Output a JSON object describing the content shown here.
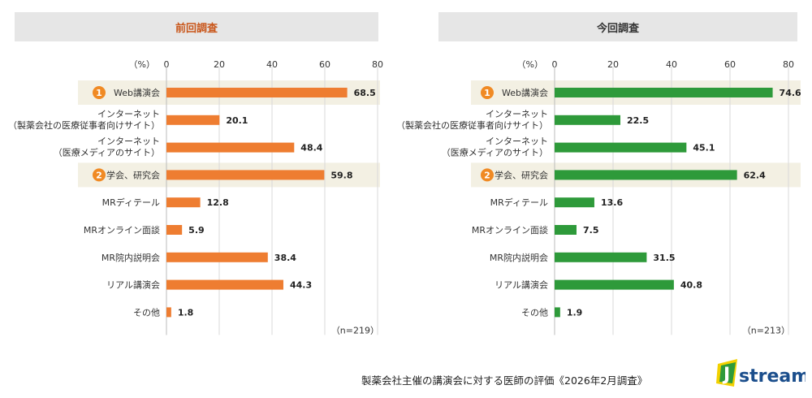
{
  "chart_data": [
    {
      "type": "bar",
      "orientation": "horizontal",
      "title": "前回調査",
      "unit_label": "（%）",
      "xlim": [
        0,
        80
      ],
      "xticks": [
        "0",
        "20",
        "40",
        "60",
        "80"
      ],
      "categories": [
        {
          "rank": "1",
          "lines": [
            "Web講演会"
          ]
        },
        {
          "rank": "",
          "lines": [
            "インターネット",
            "（製薬会社の医療従事者向けサイト）"
          ]
        },
        {
          "rank": "",
          "lines": [
            "インターネット",
            "（医療メディアのサイト）"
          ]
        },
        {
          "rank": "2",
          "lines": [
            "学会、研究会"
          ]
        },
        {
          "rank": "",
          "lines": [
            "MRディテール"
          ]
        },
        {
          "rank": "",
          "lines": [
            "MRオンライン面談"
          ]
        },
        {
          "rank": "",
          "lines": [
            "MR院内説明会"
          ]
        },
        {
          "rank": "",
          "lines": [
            "リアル講演会"
          ]
        },
        {
          "rank": "",
          "lines": [
            "その他"
          ]
        }
      ],
      "values": [
        68.5,
        20.1,
        48.4,
        59.8,
        12.8,
        5.9,
        38.4,
        44.3,
        1.8
      ],
      "value_labels": [
        "68.5",
        "20.1",
        "48.4",
        "59.8",
        "12.8",
        "5.9",
        "38.4",
        "44.3",
        "1.8"
      ],
      "highlighted_rows": [
        0,
        3
      ],
      "bar_color": "#ee7d31",
      "n_label": "（n=219）",
      "grid": true
    },
    {
      "type": "bar",
      "orientation": "horizontal",
      "title": "今回調査",
      "unit_label": "（%）",
      "xlim": [
        0,
        80
      ],
      "xticks": [
        "0",
        "20",
        "40",
        "60",
        "80"
      ],
      "categories": [
        {
          "rank": "1",
          "lines": [
            "Web講演会"
          ]
        },
        {
          "rank": "",
          "lines": [
            "インターネット",
            "（製薬会社の医療従事者向けサイト）"
          ]
        },
        {
          "rank": "",
          "lines": [
            "インターネット",
            "（医療メディアのサイト）"
          ]
        },
        {
          "rank": "2",
          "lines": [
            "学会、研究会"
          ]
        },
        {
          "rank": "",
          "lines": [
            "MRディテール"
          ]
        },
        {
          "rank": "",
          "lines": [
            "MRオンライン面談"
          ]
        },
        {
          "rank": "",
          "lines": [
            "MR院内説明会"
          ]
        },
        {
          "rank": "",
          "lines": [
            "リアル講演会"
          ]
        },
        {
          "rank": "",
          "lines": [
            "その他"
          ]
        }
      ],
      "values": [
        74.6,
        22.5,
        45.1,
        62.4,
        13.6,
        7.5,
        31.5,
        40.8,
        1.9
      ],
      "value_labels": [
        "74.6",
        "22.5",
        "45.1",
        "62.4",
        "13.6",
        "7.5",
        "31.5",
        "40.8",
        "1.9"
      ],
      "highlighted_rows": [
        0,
        3
      ],
      "bar_color": "#2e9a3a",
      "n_label": "（n=213）",
      "grid": true
    }
  ],
  "footer": {
    "caption": "製薬会社主催の講演会に対する医師の評価《2026年2月調査》"
  },
  "logo": {
    "text": "stream",
    "icon": "jstream-j-logo-icon",
    "colors": {
      "j_green": "#2e9a3a",
      "j_yellow": "#f2d100",
      "text": "#1b4e8c"
    }
  },
  "colors": {
    "rank_badge": "#f08a24",
    "highlight_band": "#f3f0e3",
    "header_bg": "#e6e6e6",
    "left_title": "#c9571b",
    "grid": "#d9d9d9"
  }
}
